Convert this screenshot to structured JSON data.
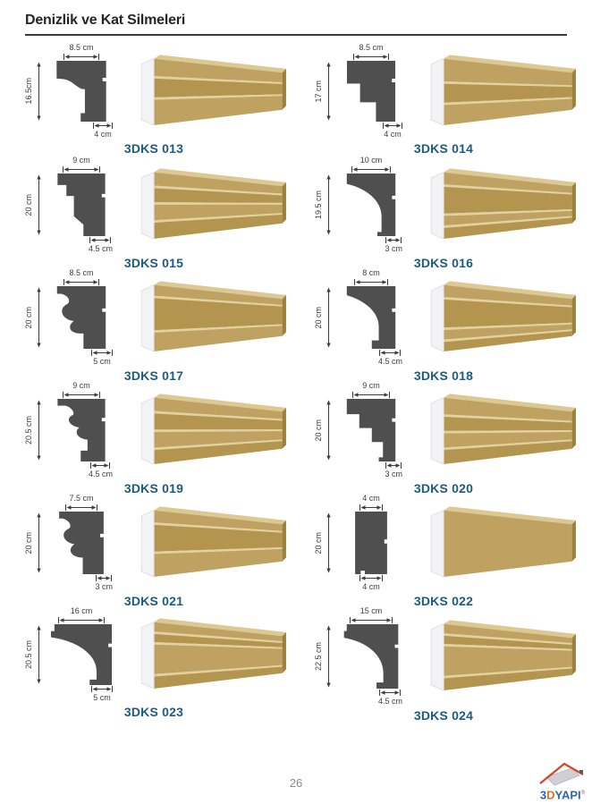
{
  "header": {
    "title": "Denizlik ve Kat Silmeleri"
  },
  "products": [
    {
      "code": "3DKS 013",
      "top": "8.5 cm",
      "height": "16.5cm",
      "bottom": "4 cm",
      "profile": "stepped-cornice"
    },
    {
      "code": "3DKS 014",
      "top": "8.5 cm",
      "height": "17 cm",
      "bottom": "4 cm",
      "profile": "stairs-2"
    },
    {
      "code": "3DKS 015",
      "top": "9 cm",
      "height": "20 cm",
      "bottom": "4.5 cm",
      "profile": "stepped-slant"
    },
    {
      "code": "3DKS 016",
      "top": "10 cm",
      "height": "19.5 cm",
      "bottom": "3 cm",
      "profile": "cove"
    },
    {
      "code": "3DKS 017",
      "top": "8.5 cm",
      "height": "20 cm",
      "bottom": "5 cm",
      "profile": "ogee"
    },
    {
      "code": "3DKS 018",
      "top": "8 cm",
      "height": "20 cm",
      "bottom": "4.5 cm",
      "profile": "cove-foot"
    },
    {
      "code": "3DKS 019",
      "top": "9 cm",
      "height": "20.5 cm",
      "bottom": "4.5 cm",
      "profile": "wave"
    },
    {
      "code": "3DKS 020",
      "top": "9 cm",
      "height": "20 cm",
      "bottom": "3 cm",
      "profile": "stairs-4"
    },
    {
      "code": "3DKS 021",
      "top": "7.5 cm",
      "height": "20 cm",
      "bottom": "3 cm",
      "profile": "ogee-small"
    },
    {
      "code": "3DKS 022",
      "top": "4 cm",
      "height": "20 cm",
      "bottom": "4 cm",
      "profile": "flat"
    },
    {
      "code": "3DKS 023",
      "top": "16 cm",
      "height": "20.5 cm",
      "bottom": "5 cm",
      "profile": "crown"
    },
    {
      "code": "3DKS 024",
      "top": "15 cm",
      "height": "22.5 cm",
      "bottom": "4.5 cm",
      "profile": "crown-tall"
    }
  ],
  "footer": {
    "page_number": "26",
    "logo": {
      "part1": "3",
      "part2": "D",
      "part3": "YAPI",
      "registered": "®"
    }
  },
  "colors": {
    "title_text": "#262626",
    "code_text": "#1b5c80",
    "silhouette": "#4f4f4f",
    "dimension_text": "#3d3d3d",
    "moulding_front": "#bfa161",
    "moulding_front_alt": "#b3954f",
    "moulding_top": "#dec892",
    "moulding_end": "#9b8040",
    "cap_white": "#f3f3f6",
    "logo_blue": "#2b66ae",
    "logo_orange": "#e2702a",
    "roof_red": "#d6442a",
    "page_number_gray": "#8a8a8a"
  }
}
